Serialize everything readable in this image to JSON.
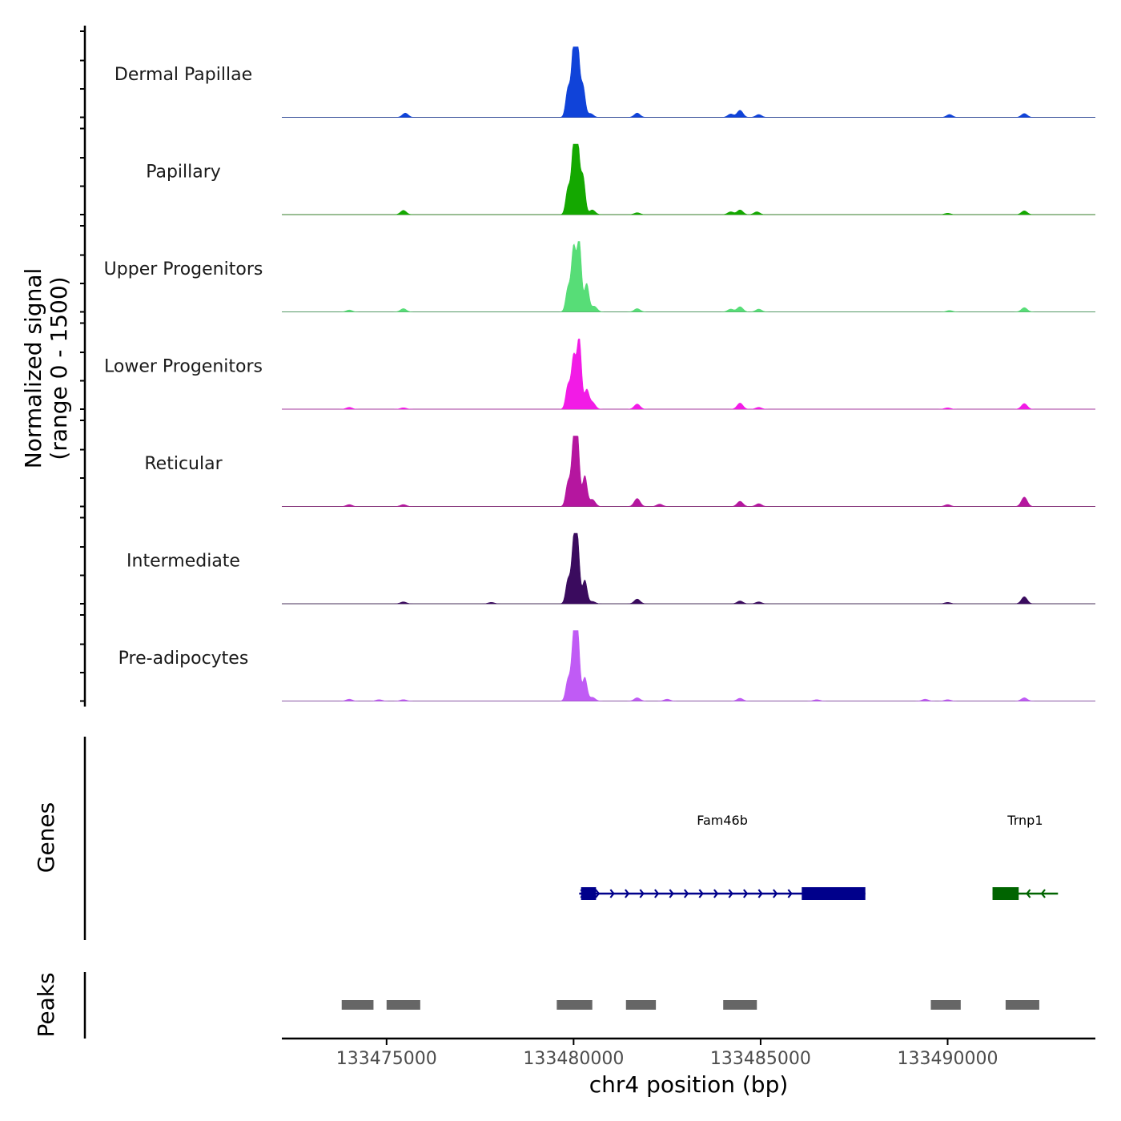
{
  "chart_data": {
    "type": "area",
    "title": "",
    "xlabel": "chr4 position (bp)",
    "ylabel_line1": "Normalized signal",
    "ylabel_line2": "(range 0 - 1500)",
    "ylim": [
      0,
      1500
    ],
    "xlim": [
      133472200,
      133493950
    ],
    "x_ticks": [
      133475000,
      133480000,
      133485000,
      133490000
    ],
    "x_tick_labels": [
      "133475000",
      "133480000",
      "133485000",
      "133490000"
    ],
    "genes_track_label": "Genes",
    "peaks_track_label": "Peaks",
    "series": [
      {
        "name": "Dermal Papillae",
        "color": "#1043d9",
        "peaks": [
          {
            "x": 133475500,
            "height": 90
          },
          {
            "x": 133479850,
            "height": 600
          },
          {
            "x": 133480000,
            "height": 1350
          },
          {
            "x": 133480100,
            "height": 1500
          },
          {
            "x": 133480250,
            "height": 650
          },
          {
            "x": 133480450,
            "height": 80
          },
          {
            "x": 133481700,
            "height": 90
          },
          {
            "x": 133484200,
            "height": 70
          },
          {
            "x": 133484450,
            "height": 150
          },
          {
            "x": 133484950,
            "height": 60
          },
          {
            "x": 133490050,
            "height": 60
          },
          {
            "x": 133492050,
            "height": 80
          }
        ]
      },
      {
        "name": "Papillary",
        "color": "#14a800",
        "peaks": [
          {
            "x": 133475450,
            "height": 90
          },
          {
            "x": 133479850,
            "height": 550
          },
          {
            "x": 133480000,
            "height": 1300
          },
          {
            "x": 133480100,
            "height": 1500
          },
          {
            "x": 133480250,
            "height": 800
          },
          {
            "x": 133480500,
            "height": 100
          },
          {
            "x": 133481700,
            "height": 40
          },
          {
            "x": 133484200,
            "height": 60
          },
          {
            "x": 133484450,
            "height": 100
          },
          {
            "x": 133484900,
            "height": 60
          },
          {
            "x": 133490000,
            "height": 30
          },
          {
            "x": 133492050,
            "height": 80
          }
        ]
      },
      {
        "name": "Upper Progenitors",
        "color": "#57dd77",
        "peaks": [
          {
            "x": 133474000,
            "height": 40
          },
          {
            "x": 133475450,
            "height": 70
          },
          {
            "x": 133479850,
            "height": 500
          },
          {
            "x": 133480000,
            "height": 1350
          },
          {
            "x": 133480150,
            "height": 1500
          },
          {
            "x": 133480350,
            "height": 600
          },
          {
            "x": 133480550,
            "height": 120
          },
          {
            "x": 133481700,
            "height": 70
          },
          {
            "x": 133484200,
            "height": 60
          },
          {
            "x": 133484450,
            "height": 110
          },
          {
            "x": 133484950,
            "height": 60
          },
          {
            "x": 133490050,
            "height": 30
          },
          {
            "x": 133492050,
            "height": 90
          }
        ]
      },
      {
        "name": "Lower Progenitors",
        "color": "#f21be6",
        "peaks": [
          {
            "x": 133474000,
            "height": 40
          },
          {
            "x": 133475450,
            "height": 30
          },
          {
            "x": 133479850,
            "height": 500
          },
          {
            "x": 133480000,
            "height": 1100
          },
          {
            "x": 133480150,
            "height": 1500
          },
          {
            "x": 133480350,
            "height": 400
          },
          {
            "x": 133480500,
            "height": 150
          },
          {
            "x": 133481700,
            "height": 110
          },
          {
            "x": 133484450,
            "height": 130
          },
          {
            "x": 133484950,
            "height": 40
          },
          {
            "x": 133490000,
            "height": 30
          },
          {
            "x": 133492050,
            "height": 120
          }
        ]
      },
      {
        "name": "Reticular",
        "color": "#b5169f",
        "peaks": [
          {
            "x": 133474000,
            "height": 40
          },
          {
            "x": 133475450,
            "height": 40
          },
          {
            "x": 133479850,
            "height": 500
          },
          {
            "x": 133480000,
            "height": 1250
          },
          {
            "x": 133480100,
            "height": 1400
          },
          {
            "x": 133480300,
            "height": 650
          },
          {
            "x": 133480500,
            "height": 150
          },
          {
            "x": 133481700,
            "height": 170
          },
          {
            "x": 133482300,
            "height": 50
          },
          {
            "x": 133484450,
            "height": 110
          },
          {
            "x": 133484950,
            "height": 60
          },
          {
            "x": 133490000,
            "height": 40
          },
          {
            "x": 133492050,
            "height": 200
          }
        ]
      },
      {
        "name": "Intermediate",
        "color": "#3a0b5e",
        "peaks": [
          {
            "x": 133475450,
            "height": 40
          },
          {
            "x": 133477800,
            "height": 30
          },
          {
            "x": 133479850,
            "height": 500
          },
          {
            "x": 133480000,
            "height": 1150
          },
          {
            "x": 133480100,
            "height": 1300
          },
          {
            "x": 133480300,
            "height": 500
          },
          {
            "x": 133480500,
            "height": 50
          },
          {
            "x": 133481700,
            "height": 100
          },
          {
            "x": 133484450,
            "height": 60
          },
          {
            "x": 133484950,
            "height": 40
          },
          {
            "x": 133490000,
            "height": 30
          },
          {
            "x": 133492050,
            "height": 150
          }
        ]
      },
      {
        "name": "Pre-adipocytes",
        "color": "#c05bf5",
        "peaks": [
          {
            "x": 133474000,
            "height": 40
          },
          {
            "x": 133474800,
            "height": 30
          },
          {
            "x": 133475450,
            "height": 30
          },
          {
            "x": 133479850,
            "height": 450
          },
          {
            "x": 133480000,
            "height": 1200
          },
          {
            "x": 133480100,
            "height": 1500
          },
          {
            "x": 133480300,
            "height": 500
          },
          {
            "x": 133480500,
            "height": 80
          },
          {
            "x": 133481700,
            "height": 70
          },
          {
            "x": 133482500,
            "height": 40
          },
          {
            "x": 133484450,
            "height": 60
          },
          {
            "x": 133486500,
            "height": 30
          },
          {
            "x": 133489400,
            "height": 40
          },
          {
            "x": 133490000,
            "height": 30
          },
          {
            "x": 133492050,
            "height": 70
          }
        ]
      }
    ],
    "genes": [
      {
        "name": "Fam46b",
        "strand": "+",
        "color": "#00008b",
        "start": 133480150,
        "end": 133487800,
        "exons": [
          [
            133480200,
            133480600
          ],
          [
            133486100,
            133487800
          ]
        ]
      },
      {
        "name": "Trnp1",
        "strand": "-",
        "color": "#006400",
        "start": 133491200,
        "end": 133492950,
        "exons": [
          [
            133491200,
            133491900
          ]
        ]
      }
    ],
    "peak_regions": [
      {
        "start": 133473800,
        "end": 133474650
      },
      {
        "start": 133475000,
        "end": 133475900
      },
      {
        "start": 133479550,
        "end": 133480500
      },
      {
        "start": 133481400,
        "end": 133482200
      },
      {
        "start": 133484000,
        "end": 133484900
      },
      {
        "start": 133489550,
        "end": 133490350
      },
      {
        "start": 133491550,
        "end": 133492450
      }
    ],
    "peak_region_color": "#666666"
  }
}
